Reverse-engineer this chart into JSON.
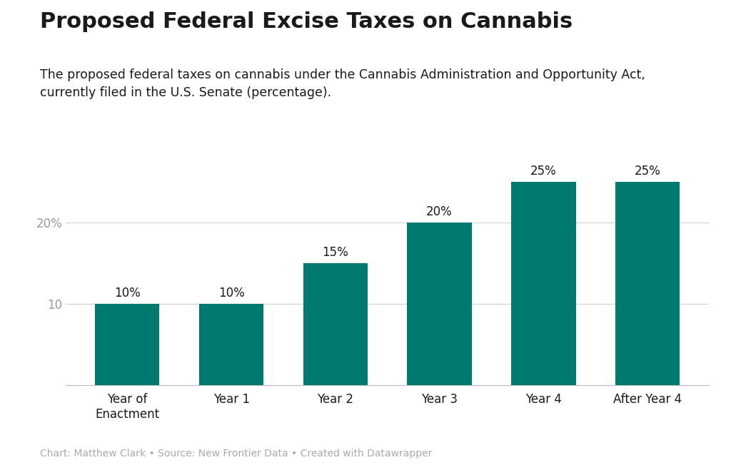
{
  "title": "Proposed Federal Excise Taxes on Cannabis",
  "subtitle": "The proposed federal taxes on cannabis under the Cannabis Administration and Opportunity Act,\ncurrently filed in the U.S. Senate (percentage).",
  "footer": "Chart: Matthew Clark • Source: New Frontier Data • Created with Datawrapper",
  "categories": [
    "Year of\nEnactment",
    "Year 1",
    "Year 2",
    "Year 3",
    "Year 4",
    "After Year 4"
  ],
  "values": [
    10,
    10,
    15,
    20,
    25,
    25
  ],
  "bar_color": "#007A6E",
  "bar_labels": [
    "10%",
    "10%",
    "15%",
    "20%",
    "25%",
    "25%"
  ],
  "yticks": [
    0,
    10,
    20
  ],
  "ytick_labels": [
    "",
    "10",
    "20%"
  ],
  "ylim": [
    0,
    30
  ],
  "background_color": "#ffffff",
  "title_fontsize": 22,
  "subtitle_fontsize": 12.5,
  "footer_fontsize": 10,
  "bar_label_fontsize": 12,
  "tick_label_fontsize": 12,
  "axis_label_color": "#999999",
  "grid_color": "#d0d0d0",
  "text_color": "#1a1a1a",
  "footer_color": "#aaaaaa"
}
